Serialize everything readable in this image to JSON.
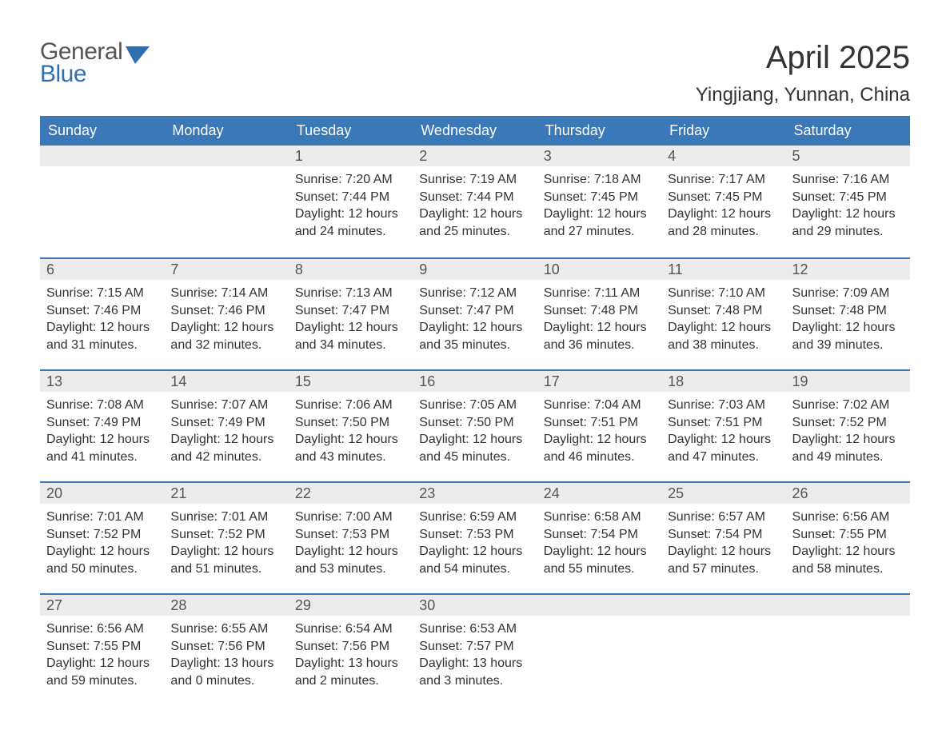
{
  "branding": {
    "logo_line1": "General",
    "logo_line2": "Blue",
    "logo_line1_color": "#555555",
    "logo_line2_color": "#2f6fb0",
    "flag_color": "#2f6fb0"
  },
  "header": {
    "title": "April 2025",
    "location": "Yingjiang, Yunnan, China"
  },
  "styling": {
    "header_bg": "#3a78b7",
    "header_text": "#ffffff",
    "day_num_bg": "#ececec",
    "day_num_color": "#555555",
    "body_text_color": "#333333",
    "week_border_color": "#3a78b7",
    "page_bg": "#ffffff",
    "title_fontsize_pt": 30,
    "location_fontsize_pt": 18,
    "header_fontsize_pt": 14,
    "daynum_fontsize_pt": 14,
    "body_fontsize_pt": 12
  },
  "day_names": [
    "Sunday",
    "Monday",
    "Tuesday",
    "Wednesday",
    "Thursday",
    "Friday",
    "Saturday"
  ],
  "weeks": [
    [
      {
        "blank": true
      },
      {
        "blank": true
      },
      {
        "day": "1",
        "sunrise": "Sunrise: 7:20 AM",
        "sunset": "Sunset: 7:44 PM",
        "dl1": "Daylight: 12 hours",
        "dl2": "and 24 minutes."
      },
      {
        "day": "2",
        "sunrise": "Sunrise: 7:19 AM",
        "sunset": "Sunset: 7:44 PM",
        "dl1": "Daylight: 12 hours",
        "dl2": "and 25 minutes."
      },
      {
        "day": "3",
        "sunrise": "Sunrise: 7:18 AM",
        "sunset": "Sunset: 7:45 PM",
        "dl1": "Daylight: 12 hours",
        "dl2": "and 27 minutes."
      },
      {
        "day": "4",
        "sunrise": "Sunrise: 7:17 AM",
        "sunset": "Sunset: 7:45 PM",
        "dl1": "Daylight: 12 hours",
        "dl2": "and 28 minutes."
      },
      {
        "day": "5",
        "sunrise": "Sunrise: 7:16 AM",
        "sunset": "Sunset: 7:45 PM",
        "dl1": "Daylight: 12 hours",
        "dl2": "and 29 minutes."
      }
    ],
    [
      {
        "day": "6",
        "sunrise": "Sunrise: 7:15 AM",
        "sunset": "Sunset: 7:46 PM",
        "dl1": "Daylight: 12 hours",
        "dl2": "and 31 minutes."
      },
      {
        "day": "7",
        "sunrise": "Sunrise: 7:14 AM",
        "sunset": "Sunset: 7:46 PM",
        "dl1": "Daylight: 12 hours",
        "dl2": "and 32 minutes."
      },
      {
        "day": "8",
        "sunrise": "Sunrise: 7:13 AM",
        "sunset": "Sunset: 7:47 PM",
        "dl1": "Daylight: 12 hours",
        "dl2": "and 34 minutes."
      },
      {
        "day": "9",
        "sunrise": "Sunrise: 7:12 AM",
        "sunset": "Sunset: 7:47 PM",
        "dl1": "Daylight: 12 hours",
        "dl2": "and 35 minutes."
      },
      {
        "day": "10",
        "sunrise": "Sunrise: 7:11 AM",
        "sunset": "Sunset: 7:48 PM",
        "dl1": "Daylight: 12 hours",
        "dl2": "and 36 minutes."
      },
      {
        "day": "11",
        "sunrise": "Sunrise: 7:10 AM",
        "sunset": "Sunset: 7:48 PM",
        "dl1": "Daylight: 12 hours",
        "dl2": "and 38 minutes."
      },
      {
        "day": "12",
        "sunrise": "Sunrise: 7:09 AM",
        "sunset": "Sunset: 7:48 PM",
        "dl1": "Daylight: 12 hours",
        "dl2": "and 39 minutes."
      }
    ],
    [
      {
        "day": "13",
        "sunrise": "Sunrise: 7:08 AM",
        "sunset": "Sunset: 7:49 PM",
        "dl1": "Daylight: 12 hours",
        "dl2": "and 41 minutes."
      },
      {
        "day": "14",
        "sunrise": "Sunrise: 7:07 AM",
        "sunset": "Sunset: 7:49 PM",
        "dl1": "Daylight: 12 hours",
        "dl2": "and 42 minutes."
      },
      {
        "day": "15",
        "sunrise": "Sunrise: 7:06 AM",
        "sunset": "Sunset: 7:50 PM",
        "dl1": "Daylight: 12 hours",
        "dl2": "and 43 minutes."
      },
      {
        "day": "16",
        "sunrise": "Sunrise: 7:05 AM",
        "sunset": "Sunset: 7:50 PM",
        "dl1": "Daylight: 12 hours",
        "dl2": "and 45 minutes."
      },
      {
        "day": "17",
        "sunrise": "Sunrise: 7:04 AM",
        "sunset": "Sunset: 7:51 PM",
        "dl1": "Daylight: 12 hours",
        "dl2": "and 46 minutes."
      },
      {
        "day": "18",
        "sunrise": "Sunrise: 7:03 AM",
        "sunset": "Sunset: 7:51 PM",
        "dl1": "Daylight: 12 hours",
        "dl2": "and 47 minutes."
      },
      {
        "day": "19",
        "sunrise": "Sunrise: 7:02 AM",
        "sunset": "Sunset: 7:52 PM",
        "dl1": "Daylight: 12 hours",
        "dl2": "and 49 minutes."
      }
    ],
    [
      {
        "day": "20",
        "sunrise": "Sunrise: 7:01 AM",
        "sunset": "Sunset: 7:52 PM",
        "dl1": "Daylight: 12 hours",
        "dl2": "and 50 minutes."
      },
      {
        "day": "21",
        "sunrise": "Sunrise: 7:01 AM",
        "sunset": "Sunset: 7:52 PM",
        "dl1": "Daylight: 12 hours",
        "dl2": "and 51 minutes."
      },
      {
        "day": "22",
        "sunrise": "Sunrise: 7:00 AM",
        "sunset": "Sunset: 7:53 PM",
        "dl1": "Daylight: 12 hours",
        "dl2": "and 53 minutes."
      },
      {
        "day": "23",
        "sunrise": "Sunrise: 6:59 AM",
        "sunset": "Sunset: 7:53 PM",
        "dl1": "Daylight: 12 hours",
        "dl2": "and 54 minutes."
      },
      {
        "day": "24",
        "sunrise": "Sunrise: 6:58 AM",
        "sunset": "Sunset: 7:54 PM",
        "dl1": "Daylight: 12 hours",
        "dl2": "and 55 minutes."
      },
      {
        "day": "25",
        "sunrise": "Sunrise: 6:57 AM",
        "sunset": "Sunset: 7:54 PM",
        "dl1": "Daylight: 12 hours",
        "dl2": "and 57 minutes."
      },
      {
        "day": "26",
        "sunrise": "Sunrise: 6:56 AM",
        "sunset": "Sunset: 7:55 PM",
        "dl1": "Daylight: 12 hours",
        "dl2": "and 58 minutes."
      }
    ],
    [
      {
        "day": "27",
        "sunrise": "Sunrise: 6:56 AM",
        "sunset": "Sunset: 7:55 PM",
        "dl1": "Daylight: 12 hours",
        "dl2": "and 59 minutes."
      },
      {
        "day": "28",
        "sunrise": "Sunrise: 6:55 AM",
        "sunset": "Sunset: 7:56 PM",
        "dl1": "Daylight: 13 hours",
        "dl2": "and 0 minutes."
      },
      {
        "day": "29",
        "sunrise": "Sunrise: 6:54 AM",
        "sunset": "Sunset: 7:56 PM",
        "dl1": "Daylight: 13 hours",
        "dl2": "and 2 minutes."
      },
      {
        "day": "30",
        "sunrise": "Sunrise: 6:53 AM",
        "sunset": "Sunset: 7:57 PM",
        "dl1": "Daylight: 13 hours",
        "dl2": "and 3 minutes."
      },
      {
        "blank": true
      },
      {
        "blank": true
      },
      {
        "blank": true
      }
    ]
  ]
}
